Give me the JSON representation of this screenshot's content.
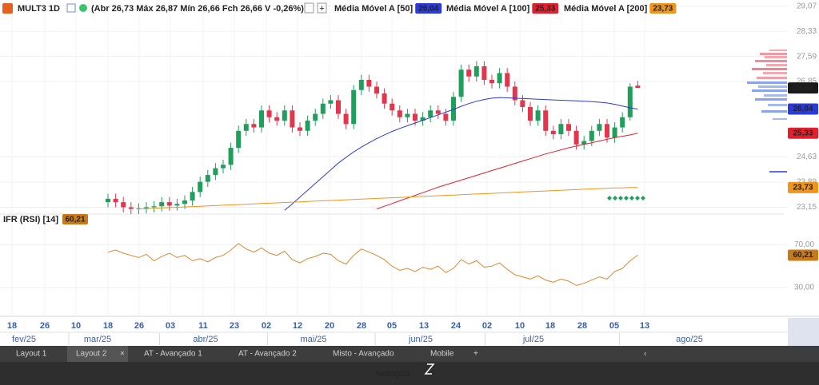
{
  "header": {
    "symbol": "MULT3 1D",
    "quote": "(Abr 26,73 Máx 26,87 Mín 26,66 Fch 26,66 V -0,26%)"
  },
  "chart_data": [
    {
      "type": "candlestick",
      "up_color": "#1f9e5c",
      "down_color": "#e2364c",
      "ylim": [
        22.95,
        29.25
      ],
      "yticks": [
        {
          "value": 29.07,
          "label": "29,07"
        },
        {
          "value": 28.33,
          "label": "28,33"
        },
        {
          "value": 27.59,
          "label": "27,59"
        },
        {
          "value": 26.85,
          "label": "26,85"
        },
        {
          "value": 24.63,
          "label": "24,63"
        },
        {
          "value": 23.89,
          "label": "23,89"
        },
        {
          "value": 23.15,
          "label": "23,15"
        }
      ],
      "grid": true,
      "open": [
        23.3,
        23.4,
        23.3,
        23.15,
        23.1,
        23.12,
        23.15,
        23.18,
        23.3,
        23.2,
        23.25,
        23.35,
        23.6,
        23.9,
        24.1,
        24.3,
        24.4,
        24.9,
        25.4,
        25.6,
        25.5,
        26.0,
        25.8,
        25.7,
        26.0,
        25.5,
        25.4,
        25.7,
        25.9,
        26.2,
        26.3,
        25.9,
        25.6,
        26.6,
        26.9,
        26.7,
        26.5,
        26.2,
        26.0,
        25.8,
        25.9,
        25.7,
        25.8,
        26.0,
        25.9,
        25.7,
        26.4,
        27.2,
        27.0,
        27.3,
        26.9,
        26.8,
        27.1,
        26.7,
        26.3,
        26.1,
        25.7,
        26.0,
        25.4,
        25.3,
        25.6,
        25.4,
        25.0,
        25.1,
        25.4,
        25.6,
        25.2,
        25.5,
        25.8,
        26.73
      ],
      "high": [
        23.55,
        23.55,
        23.45,
        23.3,
        23.27,
        23.3,
        23.33,
        23.45,
        23.45,
        23.4,
        23.5,
        23.75,
        24.05,
        24.25,
        24.45,
        24.55,
        25.05,
        25.55,
        25.75,
        25.75,
        26.15,
        26.15,
        25.95,
        26.15,
        26.15,
        25.65,
        25.85,
        26.05,
        26.35,
        26.45,
        26.45,
        26.05,
        26.75,
        27.05,
        27.05,
        26.85,
        26.65,
        26.35,
        26.15,
        26.05,
        26.05,
        25.95,
        26.15,
        26.15,
        26.05,
        26.55,
        27.35,
        27.35,
        27.45,
        27.45,
        27.05,
        27.25,
        27.25,
        26.85,
        26.45,
        26.25,
        26.15,
        26.15,
        25.55,
        25.75,
        25.75,
        25.55,
        25.25,
        25.55,
        25.75,
        25.75,
        25.65,
        25.95,
        26.8,
        26.87
      ],
      "low": [
        23.15,
        23.15,
        23.0,
        22.95,
        22.95,
        22.97,
        23.0,
        23.03,
        23.05,
        23.05,
        23.1,
        23.2,
        23.45,
        23.75,
        23.95,
        24.15,
        24.25,
        24.75,
        25.25,
        25.35,
        25.35,
        25.65,
        25.55,
        25.55,
        25.35,
        25.25,
        25.25,
        25.55,
        25.75,
        26.05,
        25.75,
        25.45,
        25.45,
        26.45,
        26.55,
        26.35,
        26.05,
        25.85,
        25.65,
        25.65,
        25.55,
        25.55,
        25.65,
        25.75,
        25.55,
        25.55,
        26.25,
        26.85,
        26.85,
        26.75,
        26.65,
        26.65,
        26.55,
        26.15,
        25.95,
        25.55,
        25.55,
        25.25,
        25.15,
        25.15,
        25.25,
        24.85,
        24.85,
        24.95,
        25.25,
        25.05,
        25.05,
        25.35,
        25.7,
        26.66
      ],
      "close": [
        23.4,
        23.3,
        23.15,
        23.1,
        23.12,
        23.15,
        23.18,
        23.3,
        23.2,
        23.25,
        23.35,
        23.6,
        23.9,
        24.1,
        24.3,
        24.4,
        24.9,
        25.4,
        25.6,
        25.5,
        26.0,
        25.8,
        25.7,
        26.0,
        25.5,
        25.4,
        25.7,
        25.9,
        26.2,
        26.3,
        25.9,
        25.6,
        26.6,
        26.9,
        26.7,
        26.5,
        26.2,
        26.0,
        25.8,
        25.9,
        25.7,
        25.8,
        26.0,
        25.9,
        25.7,
        26.4,
        27.2,
        27.0,
        27.3,
        26.9,
        26.8,
        27.1,
        26.7,
        26.3,
        26.1,
        25.7,
        26.0,
        25.4,
        25.3,
        25.6,
        25.4,
        25.0,
        25.1,
        25.4,
        25.6,
        25.2,
        25.5,
        25.8,
        26.7,
        26.66
      ],
      "last_label": "26,66",
      "series": [
        {
          "name": "Média Móvel A [50]",
          "color": "#2b3bd6",
          "last_label": "26,04",
          "values": [
            null,
            null,
            null,
            null,
            null,
            null,
            null,
            null,
            null,
            null,
            null,
            null,
            null,
            null,
            null,
            null,
            null,
            null,
            null,
            null,
            null,
            null,
            null,
            23.06,
            23.25,
            23.45,
            23.65,
            23.85,
            24.05,
            24.25,
            24.45,
            24.62,
            24.78,
            24.92,
            25.05,
            25.17,
            25.28,
            25.38,
            25.47,
            25.55,
            25.63,
            25.71,
            25.79,
            25.87,
            25.95,
            26.03,
            26.12,
            26.2,
            26.27,
            26.32,
            26.36,
            26.38,
            26.37,
            26.36,
            26.35,
            26.34,
            26.33,
            26.32,
            26.31,
            26.3,
            26.29,
            26.28,
            26.27,
            26.26,
            26.24,
            26.22,
            26.18,
            26.13,
            26.08,
            26.04
          ]
        },
        {
          "name": "Média Móvel A [100]",
          "color": "#e0202e",
          "last_label": "25,33",
          "values": [
            null,
            null,
            null,
            null,
            null,
            null,
            null,
            null,
            null,
            null,
            null,
            null,
            null,
            null,
            null,
            null,
            null,
            null,
            null,
            null,
            null,
            null,
            null,
            null,
            null,
            null,
            null,
            null,
            null,
            null,
            null,
            null,
            null,
            null,
            null,
            23.1,
            23.18,
            23.26,
            23.34,
            23.42,
            23.5,
            23.58,
            23.66,
            23.74,
            23.81,
            23.88,
            23.95,
            24.02,
            24.09,
            24.16,
            24.23,
            24.3,
            24.37,
            24.44,
            24.51,
            24.58,
            24.65,
            24.72,
            24.78,
            24.84,
            24.9,
            24.95,
            25.0,
            25.05,
            25.1,
            25.15,
            25.2,
            25.24,
            25.28,
            25.33
          ]
        },
        {
          "name": "Média Móvel A [200]",
          "color": "#f0951c",
          "last_label": "23,73",
          "values": [
            null,
            null,
            null,
            null,
            23.1,
            23.11,
            23.12,
            23.13,
            23.14,
            23.15,
            23.16,
            23.17,
            23.18,
            23.19,
            23.2,
            23.21,
            23.22,
            23.23,
            23.24,
            23.25,
            23.26,
            23.27,
            23.28,
            23.29,
            23.3,
            23.31,
            23.32,
            23.33,
            23.34,
            23.35,
            23.36,
            23.37,
            23.38,
            23.39,
            23.4,
            23.41,
            23.42,
            23.43,
            23.44,
            23.45,
            23.46,
            23.47,
            23.48,
            23.49,
            23.5,
            23.51,
            23.52,
            23.53,
            23.54,
            23.55,
            23.56,
            23.57,
            23.58,
            23.59,
            23.6,
            23.61,
            23.62,
            23.63,
            23.64,
            23.65,
            23.66,
            23.67,
            23.68,
            23.69,
            23.7,
            23.71,
            23.72,
            23.72,
            23.73,
            23.73
          ]
        }
      ]
    },
    {
      "type": "line",
      "title": "IFR (RSI) [14]",
      "color": "#e0862a",
      "ylim": [
        4,
        97
      ],
      "yticks": [
        {
          "value": 70,
          "label": "70,00"
        },
        {
          "value": 30,
          "label": "30,00"
        }
      ],
      "values": [
        63,
        65,
        62,
        60,
        58,
        61,
        55,
        59,
        62,
        58,
        60,
        55,
        57,
        54,
        58,
        60,
        65,
        71,
        66,
        63,
        67,
        62,
        60,
        64,
        56,
        53,
        57,
        59,
        62,
        61,
        55,
        52,
        60,
        66,
        63,
        60,
        56,
        50,
        46,
        48,
        45,
        49,
        47,
        50,
        44,
        48,
        56,
        52,
        55,
        49,
        50,
        53,
        47,
        42,
        40,
        38,
        41,
        37,
        35,
        38,
        36,
        32,
        34,
        37,
        40,
        38,
        45,
        48,
        55,
        60.21
      ],
      "last_label": "60,21"
    }
  ],
  "x_axis": {
    "days": [
      "18",
      "26",
      "10",
      "18",
      "26",
      "03",
      "11",
      "23",
      "02",
      "12",
      "20",
      "28",
      "05",
      "13",
      "24",
      "02",
      "10",
      "18",
      "28",
      "05",
      "13"
    ],
    "months": [
      "fev/25",
      "mar/25",
      "abr/25",
      "mai/25",
      "jun/25",
      "jul/25",
      "ago/25"
    ]
  },
  "tabs": [
    "Layout 1",
    "Layout 2",
    "AT - Avançado 1",
    "AT - Avançado 2",
    "Misto - Avançado",
    "Mobile"
  ],
  "footer": {
    "brand": "Nelogica"
  }
}
